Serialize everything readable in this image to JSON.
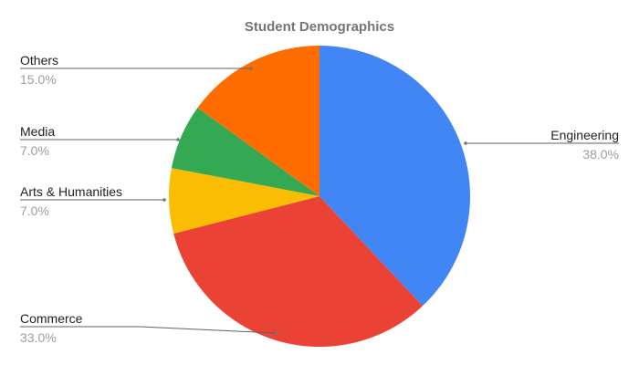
{
  "chart_data": {
    "type": "pie",
    "title": "Student Demographics",
    "slices": [
      {
        "label": "Engineering",
        "value": 38.0,
        "pct_label": "38.0%",
        "color": "#4285f4"
      },
      {
        "label": "Commerce",
        "value": 33.0,
        "pct_label": "33.0%",
        "color": "#ea4335"
      },
      {
        "label": "Arts & Humanities",
        "value": 7.0,
        "pct_label": "7.0%",
        "color": "#fbbc04"
      },
      {
        "label": "Media",
        "value": 7.0,
        "pct_label": "7.0%",
        "color": "#34a853"
      },
      {
        "label": "Others",
        "value": 15.0,
        "pct_label": "15.0%",
        "color": "#ff6d01"
      }
    ],
    "start_angle": "12 o'clock",
    "direction": "clockwise",
    "legend": "none"
  }
}
